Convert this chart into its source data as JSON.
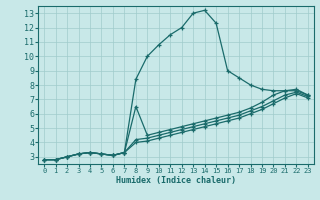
{
  "xlabel": "Humidex (Indice chaleur)",
  "xlim": [
    -0.5,
    23.5
  ],
  "ylim": [
    2.5,
    13.5
  ],
  "xticks": [
    0,
    1,
    2,
    3,
    4,
    5,
    6,
    7,
    8,
    9,
    10,
    11,
    12,
    13,
    14,
    15,
    16,
    17,
    18,
    19,
    20,
    21,
    22,
    23
  ],
  "yticks": [
    3,
    4,
    5,
    6,
    7,
    8,
    9,
    10,
    11,
    12,
    13
  ],
  "bg_color": "#c8e8e8",
  "line_color": "#1a6b6b",
  "grid_color": "#a0cccc",
  "series": [
    {
      "x": [
        0,
        1,
        2,
        3,
        4,
        5,
        6,
        7,
        8,
        9,
        10,
        11,
        12,
        13,
        14,
        15,
        16,
        17,
        18,
        19,
        20,
        21,
        22,
        23
      ],
      "y": [
        2.8,
        2.8,
        3.0,
        3.2,
        3.3,
        3.2,
        3.1,
        3.3,
        8.4,
        10.0,
        10.8,
        11.5,
        12.0,
        13.0,
        13.2,
        12.3,
        9.0,
        8.5,
        8.0,
        7.7,
        7.6,
        7.6,
        7.6,
        7.3
      ]
    },
    {
      "x": [
        0,
        1,
        2,
        3,
        4,
        5,
        6,
        7,
        8,
        9,
        10,
        11,
        12,
        13,
        14,
        15,
        16,
        17,
        18,
        19,
        20,
        21,
        22,
        23
      ],
      "y": [
        2.8,
        2.8,
        3.0,
        3.2,
        3.3,
        3.2,
        3.1,
        3.3,
        6.5,
        4.5,
        4.7,
        4.9,
        5.1,
        5.3,
        5.5,
        5.7,
        5.9,
        6.1,
        6.4,
        6.8,
        7.3,
        7.6,
        7.7,
        7.3
      ]
    },
    {
      "x": [
        0,
        1,
        2,
        3,
        4,
        5,
        6,
        7,
        8,
        9,
        10,
        11,
        12,
        13,
        14,
        15,
        16,
        17,
        18,
        19,
        20,
        21,
        22,
        23
      ],
      "y": [
        2.8,
        2.8,
        3.0,
        3.2,
        3.3,
        3.2,
        3.1,
        3.3,
        4.2,
        4.3,
        4.5,
        4.7,
        4.9,
        5.1,
        5.3,
        5.5,
        5.7,
        5.9,
        6.2,
        6.5,
        6.9,
        7.3,
        7.5,
        7.2
      ]
    },
    {
      "x": [
        0,
        1,
        2,
        3,
        4,
        5,
        6,
        7,
        8,
        9,
        10,
        11,
        12,
        13,
        14,
        15,
        16,
        17,
        18,
        19,
        20,
        21,
        22,
        23
      ],
      "y": [
        2.8,
        2.8,
        3.0,
        3.2,
        3.3,
        3.2,
        3.1,
        3.3,
        4.0,
        4.1,
        4.3,
        4.5,
        4.7,
        4.9,
        5.1,
        5.3,
        5.5,
        5.7,
        6.0,
        6.3,
        6.7,
        7.1,
        7.4,
        7.1
      ]
    }
  ]
}
